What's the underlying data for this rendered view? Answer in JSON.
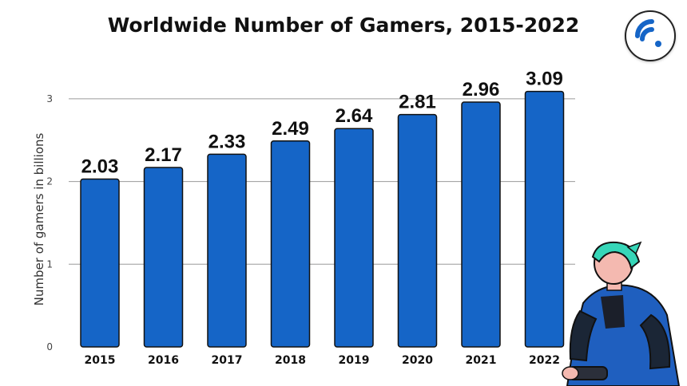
{
  "chart_data": {
    "type": "bar",
    "title": "Worldwide Number of Gamers, 2015-2022",
    "ylabel": "Number of gamers in billions",
    "xlabel": "",
    "categories": [
      "2015",
      "2016",
      "2017",
      "2018",
      "2019",
      "2020",
      "2021",
      "2022"
    ],
    "values": [
      2.03,
      2.17,
      2.33,
      2.49,
      2.64,
      2.81,
      2.96,
      3.09
    ],
    "data_labels": [
      "2.03",
      "2.17",
      "2.33",
      "2.49",
      "2.64",
      "2.81",
      "2.96",
      "3.09"
    ],
    "ylim": [
      0,
      3.1
    ],
    "yticks": [
      0,
      1,
      2,
      3
    ],
    "grid": true,
    "bar_color": "#1565c7",
    "legend": "none"
  },
  "logo": {
    "icon": "wifi-signal-icon",
    "color": "#1565c7"
  },
  "illustration": {
    "icon": "gamer-illustration"
  }
}
